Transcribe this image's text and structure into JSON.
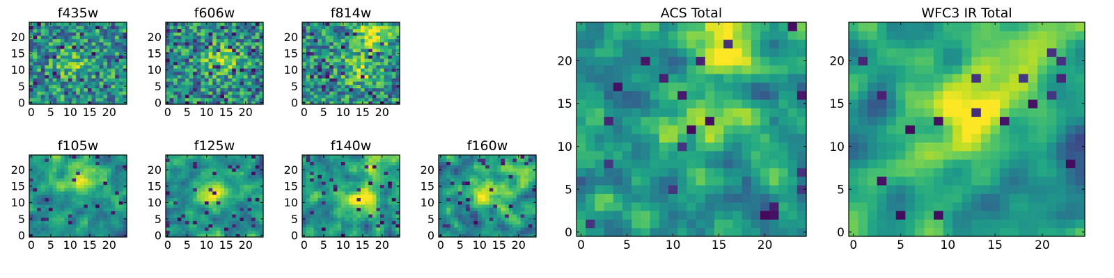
{
  "chart_data": [
    {
      "type": "heatmap",
      "title": "f435w",
      "xticks": [
        "0",
        "5",
        "10",
        "15",
        "20"
      ],
      "yticks": [
        "0",
        "5",
        "10",
        "15",
        "20"
      ],
      "xlim": [
        0,
        25
      ],
      "ylim": [
        0,
        25
      ],
      "grid_size": 25,
      "colormap": "viridis",
      "seed": 11,
      "smooth": 0,
      "hotspots": [
        {
          "x": 10,
          "y": 12,
          "strength": 0.25
        }
      ],
      "dark_fraction": 0.05
    },
    {
      "type": "heatmap",
      "title": "f606w",
      "xticks": [
        "0",
        "5",
        "10",
        "15",
        "20"
      ],
      "yticks": [
        "0",
        "5",
        "10",
        "15",
        "20"
      ],
      "xlim": [
        0,
        25
      ],
      "ylim": [
        0,
        25
      ],
      "grid_size": 25,
      "colormap": "viridis",
      "seed": 23,
      "smooth": 0,
      "hotspots": [
        {
          "x": 14,
          "y": 13,
          "strength": 0.35
        }
      ],
      "dark_fraction": 0.07
    },
    {
      "type": "heatmap",
      "title": "f814w",
      "xticks": [
        "0",
        "5",
        "10",
        "15",
        "20"
      ],
      "yticks": [
        "0",
        "5",
        "10",
        "15",
        "20"
      ],
      "xlim": [
        0,
        25
      ],
      "ylim": [
        0,
        25
      ],
      "grid_size": 25,
      "colormap": "viridis",
      "seed": 37,
      "smooth": 0,
      "hotspots": [
        {
          "x": 17,
          "y": 21,
          "strength": 0.45
        },
        {
          "x": 14,
          "y": 10,
          "strength": 0.3
        }
      ],
      "dark_fraction": 0.06
    },
    {
      "type": "heatmap",
      "title": "f105w",
      "xticks": [
        "0",
        "5",
        "10",
        "15",
        "20"
      ],
      "yticks": [
        "0",
        "5",
        "10",
        "15",
        "20"
      ],
      "xlim": [
        0,
        25
      ],
      "ylim": [
        0,
        25
      ],
      "grid_size": 25,
      "colormap": "viridis",
      "seed": 41,
      "smooth": 1,
      "hotspots": [
        {
          "x": 14,
          "y": 16,
          "strength": 0.4
        },
        {
          "x": 12,
          "y": 22,
          "strength": 0.3
        }
      ],
      "dark_fraction": 0.05
    },
    {
      "type": "heatmap",
      "title": "f125w",
      "xticks": [
        "0",
        "5",
        "10",
        "15",
        "20"
      ],
      "yticks": [
        "0",
        "5",
        "10",
        "15",
        "20"
      ],
      "xlim": [
        0,
        25
      ],
      "ylim": [
        0,
        25
      ],
      "grid_size": 25,
      "colormap": "viridis",
      "seed": 53,
      "smooth": 1,
      "hotspots": [
        {
          "x": 12,
          "y": 13,
          "strength": 0.4
        }
      ],
      "dark_fraction": 0.05
    },
    {
      "type": "heatmap",
      "title": "f140w",
      "xticks": [
        "0",
        "5",
        "10",
        "15",
        "20"
      ],
      "yticks": [
        "0",
        "5",
        "10",
        "15",
        "20"
      ],
      "xlim": [
        0,
        25
      ],
      "ylim": [
        0,
        25
      ],
      "grid_size": 25,
      "colormap": "viridis",
      "seed": 67,
      "smooth": 1,
      "hotspots": [
        {
          "x": 15,
          "y": 11,
          "strength": 0.45
        },
        {
          "x": 18,
          "y": 22,
          "strength": 0.3
        }
      ],
      "dark_fraction": 0.05
    },
    {
      "type": "heatmap",
      "title": "f160w",
      "xticks": [
        "0",
        "5",
        "10",
        "15",
        "20"
      ],
      "yticks": [
        "0",
        "5",
        "10",
        "15",
        "20"
      ],
      "xlim": [
        0,
        25
      ],
      "ylim": [
        0,
        25
      ],
      "grid_size": 25,
      "colormap": "viridis",
      "seed": 79,
      "smooth": 1,
      "hotspots": [
        {
          "x": 12,
          "y": 13,
          "strength": 0.5
        },
        {
          "x": 20,
          "y": 21,
          "strength": 0.3
        }
      ],
      "dark_fraction": 0.05
    },
    {
      "type": "heatmap",
      "title": "ACS Total",
      "xticks": [
        "0",
        "5",
        "10",
        "15",
        "20"
      ],
      "yticks": [
        "0",
        "5",
        "10",
        "15",
        "20"
      ],
      "xlim": [
        0,
        25
      ],
      "ylim": [
        0,
        25
      ],
      "grid_size": 25,
      "colormap": "viridis",
      "seed": 97,
      "smooth": 1,
      "hotspots": [
        {
          "x": 14,
          "y": 14,
          "strength": 0.35
        },
        {
          "x": 16,
          "y": 22,
          "strength": 0.45
        }
      ],
      "dark_fraction": 0.03
    },
    {
      "type": "heatmap",
      "title": "WFC3 IR Total",
      "xticks": [
        "0",
        "5",
        "10",
        "15",
        "20"
      ],
      "yticks": [
        "0",
        "5",
        "10",
        "15",
        "20"
      ],
      "xlim": [
        0,
        25
      ],
      "ylim": [
        0,
        25
      ],
      "grid_size": 25,
      "colormap": "viridis",
      "seed": 113,
      "smooth": 2,
      "hotspots": [
        {
          "x": 12,
          "y": 13,
          "strength": 0.55
        },
        {
          "x": 18,
          "y": 22,
          "strength": 0.45
        }
      ],
      "dark_fraction": 0.04
    }
  ]
}
